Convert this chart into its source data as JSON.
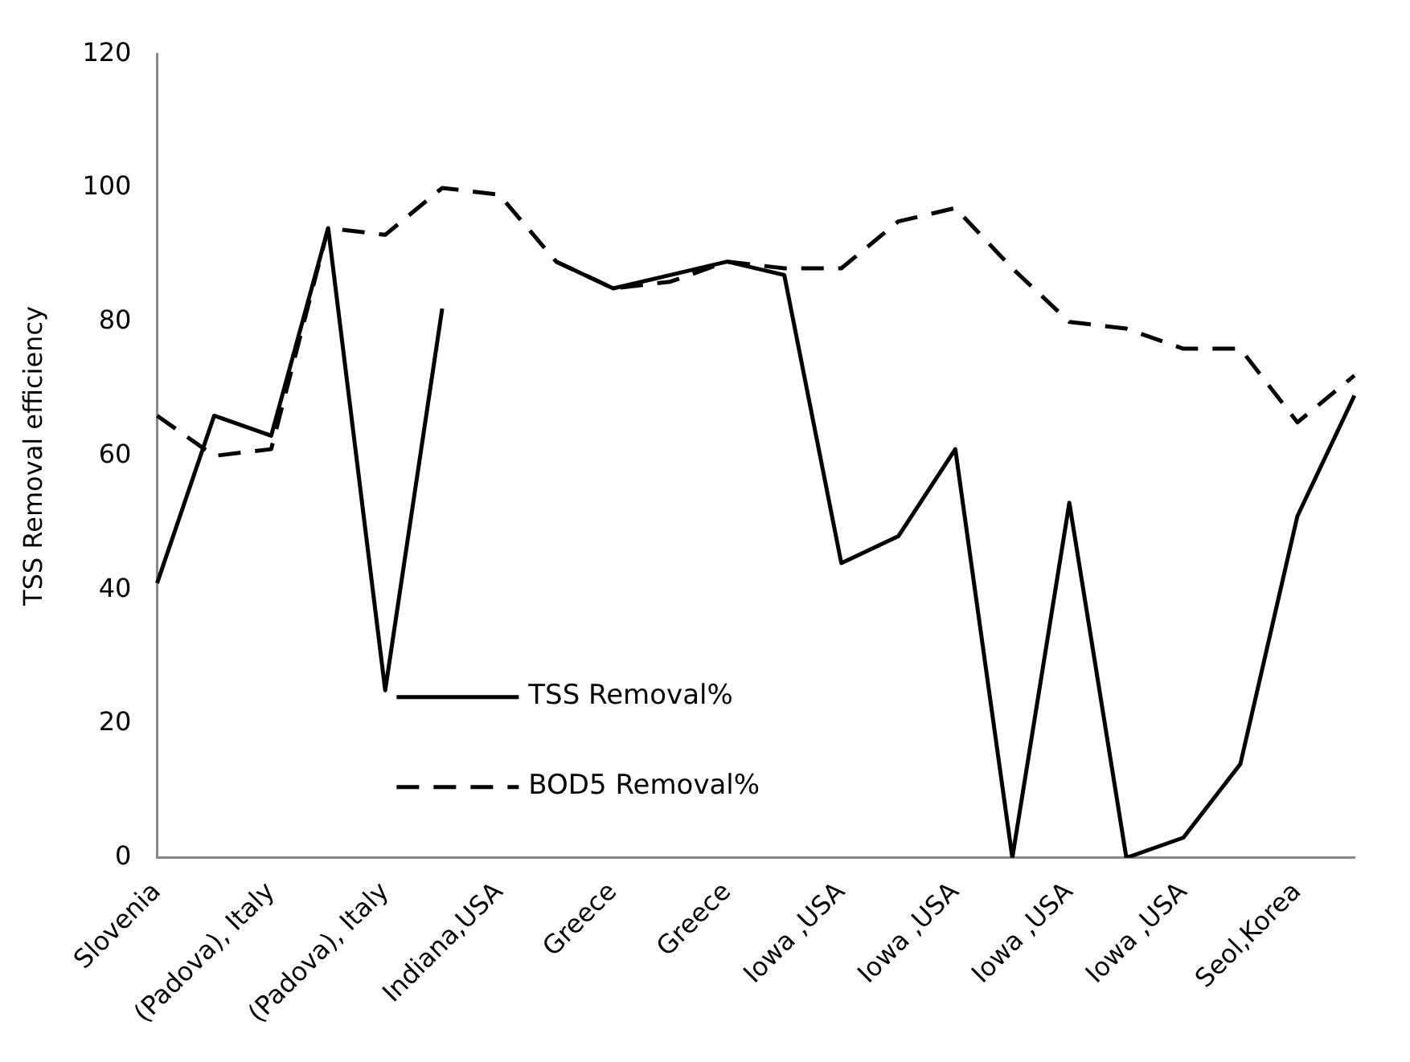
{
  "chart_data": {
    "type": "line",
    "ylabel": "TSS Removal efficiency",
    "categories": [
      "Slovenia",
      null,
      "(Padova), Italy",
      null,
      "(Padova), Italy",
      null,
      "Indiana,USA",
      null,
      "Greece",
      null,
      "Greece",
      null,
      "Iowa ,USA",
      null,
      "Iowa ,USA",
      null,
      "Iowa ,USA",
      null,
      "Iowa ,USA",
      null,
      "Seol,Korea",
      null
    ],
    "series": [
      {
        "name": "TSS Removal%",
        "color": "#000000",
        "line_style": "solid",
        "values": [
          41,
          66,
          63,
          94,
          25,
          82,
          null,
          89,
          85,
          87,
          89,
          87,
          44,
          48,
          61,
          0,
          53,
          0,
          3,
          14,
          51,
          69
        ]
      },
      {
        "name": "BOD5 Removal%",
        "color": "#000000",
        "line_style": "dashed",
        "values": [
          66,
          60,
          61,
          94,
          93,
          100,
          99,
          89,
          85,
          86,
          89,
          88,
          88,
          95,
          97,
          88,
          80,
          79,
          76,
          76,
          65,
          72
        ]
      }
    ],
    "ylim": [
      0,
      120
    ],
    "yticks": [
      0,
      20,
      40,
      60,
      80,
      100,
      120
    ],
    "grid": false,
    "legend": "bottom",
    "marker": "none"
  }
}
